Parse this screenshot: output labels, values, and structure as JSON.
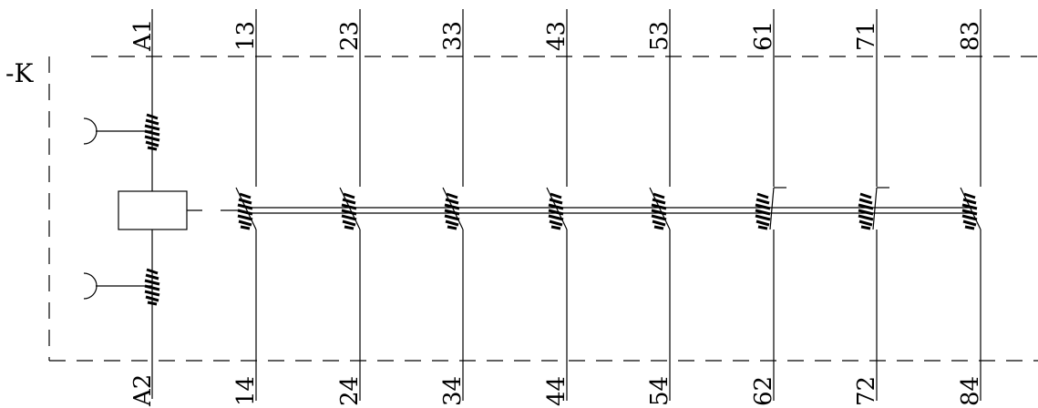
{
  "device": {
    "label": "-K"
  },
  "coil": {
    "top_terminal": "A1",
    "bottom_terminal": "A2"
  },
  "contacts": [
    {
      "type": "NO",
      "top": "13",
      "bottom": "14"
    },
    {
      "type": "NO",
      "top": "23",
      "bottom": "24"
    },
    {
      "type": "NO",
      "top": "33",
      "bottom": "34"
    },
    {
      "type": "NO",
      "top": "43",
      "bottom": "44"
    },
    {
      "type": "NO",
      "top": "53",
      "bottom": "54"
    },
    {
      "type": "NC",
      "top": "61",
      "bottom": "62"
    },
    {
      "type": "NC",
      "top": "71",
      "bottom": "72"
    },
    {
      "type": "NO",
      "top": "83",
      "bottom": "84"
    }
  ]
}
